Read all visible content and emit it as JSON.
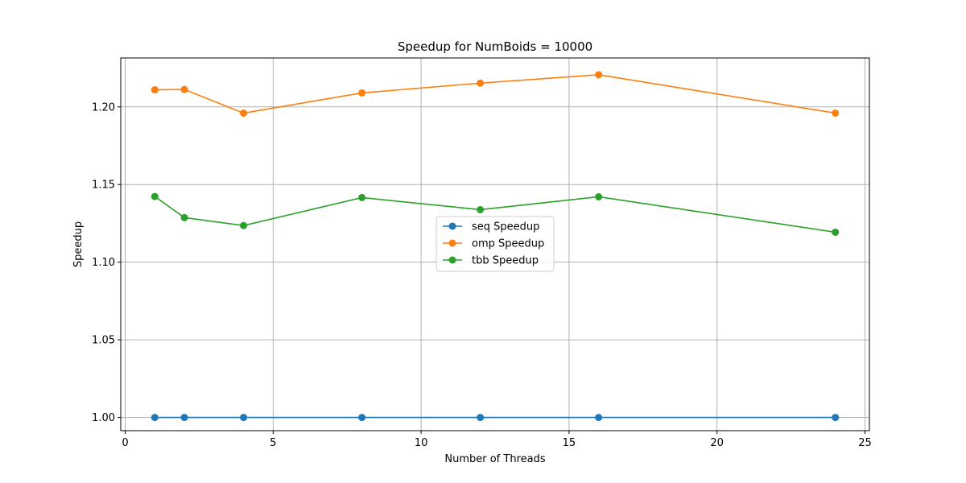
{
  "chart_data": {
    "type": "line",
    "title": "Speedup for NumBoids = 10000",
    "xlabel": "Number of Threads",
    "ylabel": "Speedup",
    "x": [
      1,
      2,
      4,
      8,
      12,
      16,
      24
    ],
    "xlim": [
      -0.15,
      25.15
    ],
    "ylim": [
      0.9915,
      1.2315
    ],
    "xticks": [
      0,
      5,
      10,
      15,
      20,
      25
    ],
    "yticks": [
      1.0,
      1.05,
      1.1,
      1.15,
      1.2
    ],
    "ytick_labels": [
      "1.00",
      "1.05",
      "1.10",
      "1.15",
      "1.20"
    ],
    "grid": true,
    "legend_position": "center",
    "series": [
      {
        "name": "seq Speedup",
        "color": "#1f77b4",
        "values": [
          1.0,
          1.0,
          1.0,
          1.0,
          1.0,
          1.0,
          1.0
        ]
      },
      {
        "name": "omp Speedup",
        "color": "#ff7f0e",
        "values": [
          1.211,
          1.2112,
          1.196,
          1.209,
          1.2153,
          1.2207,
          1.196
        ]
      },
      {
        "name": "tbb Speedup",
        "color": "#2ca02c",
        "values": [
          1.1423,
          1.1287,
          1.1236,
          1.1416,
          1.1338,
          1.1421,
          1.1193
        ]
      }
    ]
  }
}
